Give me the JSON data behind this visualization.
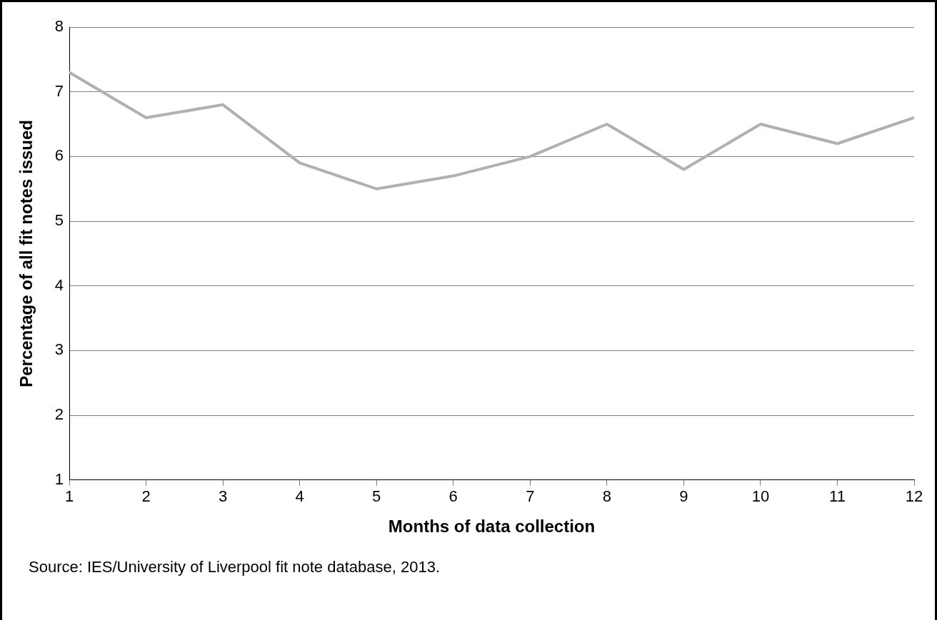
{
  "chart_data": {
    "type": "line",
    "xlabel": "Months of data collection",
    "ylabel": "Percentage of all fit notes issued",
    "x": [
      1,
      2,
      3,
      4,
      5,
      6,
      7,
      8,
      9,
      10,
      11,
      12
    ],
    "series": [
      {
        "color": "#b0b0b0",
        "values": [
          7.3,
          6.6,
          6.8,
          5.9,
          5.5,
          5.7,
          6.0,
          6.5,
          5.8,
          6.5,
          6.2,
          6.6
        ]
      }
    ],
    "xlim": [
      1,
      12
    ],
    "xticks": [
      1,
      2,
      3,
      4,
      5,
      6,
      7,
      8,
      9,
      10,
      11,
      12
    ],
    "ylim": [
      1,
      8
    ],
    "yticks": [
      1,
      2,
      3,
      4,
      5,
      6,
      7,
      8
    ],
    "grid": "y",
    "legend": false,
    "marker": "none",
    "line_style": "solid",
    "annotations": [
      "Source: IES/University of Liverpool fit note database, 2013."
    ]
  }
}
